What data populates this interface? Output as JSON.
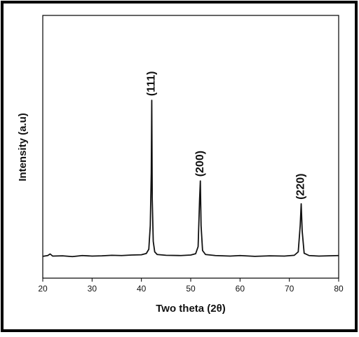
{
  "chart_data": {
    "type": "line",
    "x_label": "Two theta (2θ)",
    "y_label": "Intensity (a.u)",
    "color": "#111111",
    "x": [
      20,
      21,
      21.5,
      22,
      24,
      26,
      28,
      30,
      32,
      34,
      36,
      38,
      40,
      41,
      41.5,
      41.8,
      42,
      42.1,
      42.2,
      42.4,
      42.7,
      43.2,
      45,
      48,
      50,
      51,
      51.5,
      51.8,
      51.95,
      52.1,
      52.4,
      53,
      55,
      58,
      60,
      63,
      66,
      69,
      71,
      71.8,
      72.2,
      72.4,
      72.6,
      73,
      74,
      76,
      78,
      80
    ],
    "values": [
      8.3,
      8.6,
      9.2,
      8.4,
      8.5,
      8.2,
      8.6,
      8.4,
      8.5,
      8.7,
      8.6,
      8.8,
      8.9,
      9.4,
      11,
      20,
      40,
      67.7,
      30,
      14,
      10,
      9,
      8.7,
      8.6,
      8.8,
      9.3,
      12,
      30,
      37,
      20,
      10.5,
      9,
      8.6,
      8.4,
      8.6,
      8.3,
      8.5,
      8.4,
      8.7,
      10,
      20,
      28.3,
      18,
      9.5,
      8.6,
      8.4,
      8.5,
      8.6
    ],
    "xlim": [
      20,
      80
    ],
    "xticks": [
      20,
      30,
      40,
      50,
      60,
      70,
      80
    ],
    "ylim": [
      0,
      100
    ],
    "annotations": [
      {
        "text": "(111)",
        "x": 42.1,
        "y": 67.7
      },
      {
        "text": "(200)",
        "x": 51.95,
        "y": 37
      },
      {
        "text": "(220)",
        "x": 72.4,
        "y": 28.3
      }
    ]
  }
}
